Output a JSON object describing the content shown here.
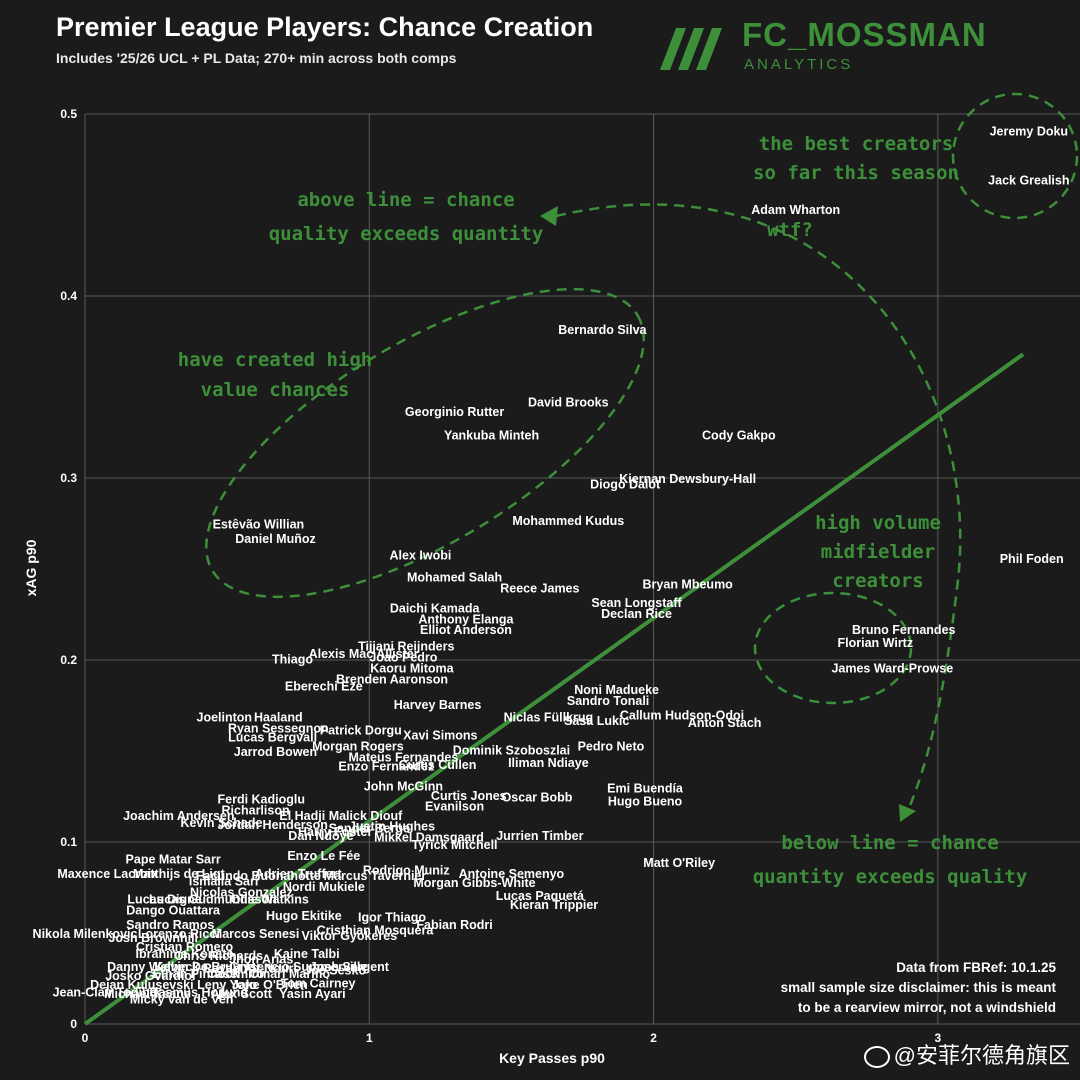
{
  "header": {
    "title": "Premier League Players: Chance Creation",
    "subtitle": "Includes '25/26 UCL + PL Data; 270+ min across both comps"
  },
  "logo": {
    "brand": "FC_MOSSMAN",
    "sub": "ANALYTICS"
  },
  "source": {
    "line1": "Data from FBRef: 10.1.25",
    "line2": "small sample size disclaimer: this is meant",
    "line3": "to be a rearview mirror, not a windshield"
  },
  "watermark": {
    "text": "@安菲尔德角旗区"
  },
  "colors": {
    "background": "#1b1b1b",
    "accent": "#3d8f3a",
    "grid": "#5a5a5a",
    "text": "#ffffff"
  },
  "annotations": [
    {
      "lines": [
        "the best creators",
        "so far this season"
      ]
    },
    {
      "lines": [
        "above line = chance",
        "quality exceeds quantity"
      ]
    },
    {
      "lines": [
        "have created high",
        "value chances"
      ]
    },
    {
      "lines": [
        "wtf?"
      ]
    },
    {
      "lines": [
        "high volume",
        "midfielder",
        "creators"
      ]
    },
    {
      "lines": [
        "below line = chance",
        "quantity exceeds quality"
      ]
    }
  ],
  "chart_data": {
    "type": "scatter",
    "xlabel": "Key Passes p90",
    "ylabel": "xAG p90",
    "xlim": [
      0,
      3.5
    ],
    "ylim": [
      0,
      0.5
    ],
    "xticks": [
      0,
      1,
      2,
      3
    ],
    "yticks": [
      0,
      0.1,
      0.2,
      0.3,
      0.4,
      0.5
    ],
    "grid": true,
    "trendline": {
      "x": [
        0,
        3.3
      ],
      "y": [
        0,
        0.368
      ]
    },
    "points": [
      {
        "name": "Jeremy Doku",
        "x": 3.32,
        "y": 0.49
      },
      {
        "name": "Jack Grealish",
        "x": 3.32,
        "y": 0.463
      },
      {
        "name": "Adam Wharton",
        "x": 2.5,
        "y": 0.447
      },
      {
        "name": "Phil Foden",
        "x": 3.33,
        "y": 0.255
      },
      {
        "name": "Bernardo Silva",
        "x": 1.82,
        "y": 0.381
      },
      {
        "name": "David Brooks",
        "x": 1.7,
        "y": 0.341
      },
      {
        "name": "Georginio Rutter",
        "x": 1.3,
        "y": 0.336
      },
      {
        "name": "Yankuba Minteh",
        "x": 1.43,
        "y": 0.323
      },
      {
        "name": "Cody Gakpo",
        "x": 2.3,
        "y": 0.323
      },
      {
        "name": "Kiernan Dewsbury-Hall",
        "x": 2.12,
        "y": 0.299
      },
      {
        "name": "Diogo Dalot",
        "x": 1.9,
        "y": 0.296
      },
      {
        "name": "Mohammed Kudus",
        "x": 1.7,
        "y": 0.276
      },
      {
        "name": "Estêvão Willian",
        "x": 0.61,
        "y": 0.274
      },
      {
        "name": "Daniel Muñoz",
        "x": 0.67,
        "y": 0.266
      },
      {
        "name": "Alex Iwobi",
        "x": 1.18,
        "y": 0.257
      },
      {
        "name": "Mohamed Salah",
        "x": 1.3,
        "y": 0.245
      },
      {
        "name": "Reece James",
        "x": 1.6,
        "y": 0.239
      },
      {
        "name": "Bryan Mbeumo",
        "x": 2.12,
        "y": 0.241
      },
      {
        "name": "Sean Longstaff",
        "x": 1.94,
        "y": 0.231
      },
      {
        "name": "Declan Rice",
        "x": 1.94,
        "y": 0.225
      },
      {
        "name": "Daichi Kamada",
        "x": 1.23,
        "y": 0.228
      },
      {
        "name": "Anthony Elanga",
        "x": 1.34,
        "y": 0.222
      },
      {
        "name": "Elliot Anderson",
        "x": 1.34,
        "y": 0.216
      },
      {
        "name": "Bruno Fernandes",
        "x": 2.88,
        "y": 0.216
      },
      {
        "name": "Florian Wirtz",
        "x": 2.78,
        "y": 0.209
      },
      {
        "name": "James Ward-Prowse",
        "x": 2.84,
        "y": 0.195
      },
      {
        "name": "Tijjani Reijnders",
        "x": 1.13,
        "y": 0.207
      },
      {
        "name": "Alexis Mac Allister",
        "x": 0.98,
        "y": 0.203
      },
      {
        "name": "Joao Pedro",
        "x": 1.12,
        "y": 0.201
      },
      {
        "name": "Thiago",
        "x": 0.73,
        "y": 0.2
      },
      {
        "name": "Kaoru Mitoma",
        "x": 1.15,
        "y": 0.195
      },
      {
        "name": "Brenden Aaronson",
        "x": 1.08,
        "y": 0.189
      },
      {
        "name": "Eberechi Eze",
        "x": 0.84,
        "y": 0.185
      },
      {
        "name": "Noni Madueke",
        "x": 1.87,
        "y": 0.183
      },
      {
        "name": "Sandro Tonali",
        "x": 1.84,
        "y": 0.177
      },
      {
        "name": "Harvey Barnes",
        "x": 1.24,
        "y": 0.175
      },
      {
        "name": "Niclas Füllkrug",
        "x": 1.63,
        "y": 0.168
      },
      {
        "name": "Sasa Lukic",
        "x": 1.8,
        "y": 0.166
      },
      {
        "name": "Callum Hudson-Odoi",
        "x": 2.1,
        "y": 0.169
      },
      {
        "name": "Anton Stach",
        "x": 2.25,
        "y": 0.165
      },
      {
        "name": "Joelinton",
        "x": 0.49,
        "y": 0.168
      },
      {
        "name": "Haaland",
        "x": 0.68,
        "y": 0.168
      },
      {
        "name": "Ryan Sessegnon",
        "x": 0.68,
        "y": 0.162
      },
      {
        "name": "Patrick Dorgu",
        "x": 0.97,
        "y": 0.161
      },
      {
        "name": "Lucas Bergvall",
        "x": 0.66,
        "y": 0.157
      },
      {
        "name": "Xavi Simons",
        "x": 1.25,
        "y": 0.158
      },
      {
        "name": "Jarrod Bowen",
        "x": 0.67,
        "y": 0.149
      },
      {
        "name": "Morgan Rogers",
        "x": 0.96,
        "y": 0.152
      },
      {
        "name": "Pedro Neto",
        "x": 1.85,
        "y": 0.152
      },
      {
        "name": "Dominik Szoboszlai",
        "x": 1.5,
        "y": 0.15
      },
      {
        "name": "Mateus Fernandes",
        "x": 1.12,
        "y": 0.146
      },
      {
        "name": "Iliman Ndiaye",
        "x": 1.63,
        "y": 0.143
      },
      {
        "name": "Curtis Cullen",
        "x": 1.24,
        "y": 0.142
      },
      {
        "name": "Enzo Fernandez",
        "x": 1.06,
        "y": 0.141
      },
      {
        "name": "Emi Buendía",
        "x": 1.97,
        "y": 0.129
      },
      {
        "name": "Hugo Bueno",
        "x": 1.97,
        "y": 0.122
      },
      {
        "name": "John McGinn",
        "x": 1.12,
        "y": 0.13
      },
      {
        "name": "Curtis Jones",
        "x": 1.35,
        "y": 0.125
      },
      {
        "name": "Oscar Bobb",
        "x": 1.59,
        "y": 0.124
      },
      {
        "name": "Ferdi Kadioglu",
        "x": 0.62,
        "y": 0.123
      },
      {
        "name": "Richarlison",
        "x": 0.6,
        "y": 0.117
      },
      {
        "name": "Joachim Andersen",
        "x": 0.33,
        "y": 0.114
      },
      {
        "name": "El Hadji Malick Diouf",
        "x": 0.9,
        "y": 0.114
      },
      {
        "name": "Evanilson",
        "x": 1.3,
        "y": 0.119
      },
      {
        "name": "Kevin Schade",
        "x": 0.48,
        "y": 0.11
      },
      {
        "name": "Jordan Henderson",
        "x": 0.66,
        "y": 0.109
      },
      {
        "name": "Sander Berge",
        "x": 1.0,
        "y": 0.107
      },
      {
        "name": "Dan Ndoye",
        "x": 0.83,
        "y": 0.103
      },
      {
        "name": "Harry Foster",
        "x": 0.88,
        "y": 0.105
      },
      {
        "name": "Justin Hughes",
        "x": 1.08,
        "y": 0.108
      },
      {
        "name": "Mikkel Damsgaard",
        "x": 1.21,
        "y": 0.102
      },
      {
        "name": "Jurrien Timber",
        "x": 1.6,
        "y": 0.103
      },
      {
        "name": "Tyrick Mitchell",
        "x": 1.3,
        "y": 0.098
      },
      {
        "name": "Pape Matar Sarr",
        "x": 0.31,
        "y": 0.09
      },
      {
        "name": "Enzo Le Fée",
        "x": 0.84,
        "y": 0.092
      },
      {
        "name": "Matt O'Riley",
        "x": 2.09,
        "y": 0.088
      },
      {
        "name": "Maxence Lacroix",
        "x": 0.08,
        "y": 0.082
      },
      {
        "name": "Matthijs de Ligt",
        "x": 0.33,
        "y": 0.082
      },
      {
        "name": "Facundo Buonanotte",
        "x": 0.61,
        "y": 0.081
      },
      {
        "name": "Adrien Truffert",
        "x": 0.75,
        "y": 0.082
      },
      {
        "name": "Marcus Tavernier",
        "x": 1.02,
        "y": 0.081
      },
      {
        "name": "Rodrigo Muniz",
        "x": 1.13,
        "y": 0.084
      },
      {
        "name": "Antoine Semenyo",
        "x": 1.5,
        "y": 0.082
      },
      {
        "name": "Ismaila Sarr",
        "x": 0.49,
        "y": 0.078
      },
      {
        "name": "Nordi Mukiele",
        "x": 0.84,
        "y": 0.075
      },
      {
        "name": "Morgan Gibbs-White",
        "x": 1.37,
        "y": 0.077
      },
      {
        "name": "Nicolas Gonzalez",
        "x": 0.55,
        "y": 0.072
      },
      {
        "name": "Lucas Paquetá",
        "x": 1.6,
        "y": 0.07
      },
      {
        "name": "Lucas Digne",
        "x": 0.28,
        "y": 0.068
      },
      {
        "name": "Lucas Gudmundsson",
        "x": 0.45,
        "y": 0.068
      },
      {
        "name": "Ollie Watkins",
        "x": 0.65,
        "y": 0.068
      },
      {
        "name": "Kieran Trippier",
        "x": 1.65,
        "y": 0.065
      },
      {
        "name": "Dango Ouattara",
        "x": 0.31,
        "y": 0.062
      },
      {
        "name": "Hugo Ekitike",
        "x": 0.77,
        "y": 0.059
      },
      {
        "name": "Igor Thiago",
        "x": 1.08,
        "y": 0.058
      },
      {
        "name": "Fabian Rodri",
        "x": 1.3,
        "y": 0.054
      },
      {
        "name": "Sandro Ramos",
        "x": 0.3,
        "y": 0.054
      },
      {
        "name": "Nikola Milenkovic",
        "x": 0.0,
        "y": 0.049
      },
      {
        "name": "Josh Brownhill",
        "x": 0.24,
        "y": 0.047
      },
      {
        "name": "Lorenzo Ricci",
        "x": 0.33,
        "y": 0.049
      },
      {
        "name": "Marcos Senesi",
        "x": 0.6,
        "y": 0.049
      },
      {
        "name": "Viktor Gyokeres",
        "x": 0.93,
        "y": 0.048
      },
      {
        "name": "Cristhian Mosquera",
        "x": 1.02,
        "y": 0.051
      },
      {
        "name": "Cristian Romero",
        "x": 0.35,
        "y": 0.042
      },
      {
        "name": "Ibrahima Konate",
        "x": 0.35,
        "y": 0.038
      },
      {
        "name": "Chris Richards",
        "x": 0.47,
        "y": 0.037
      },
      {
        "name": "Jhon Arias",
        "x": 0.62,
        "y": 0.035
      },
      {
        "name": "Kaine Talbi",
        "x": 0.78,
        "y": 0.038
      },
      {
        "name": "Danny Welbeck",
        "x": 0.24,
        "y": 0.031
      },
      {
        "name": "Kevin De Bruyne",
        "x": 0.42,
        "y": 0.031
      },
      {
        "name": "Rayan Ait-Nouri",
        "x": 0.58,
        "y": 0.03
      },
      {
        "name": "Crysencio Summerville",
        "x": 0.75,
        "y": 0.031
      },
      {
        "name": "Josh Sargent",
        "x": 0.93,
        "y": 0.031
      },
      {
        "name": "Josko Gvardiol",
        "x": 0.23,
        "y": 0.026
      },
      {
        "name": "Ethan Pinnock",
        "x": 0.39,
        "y": 0.027
      },
      {
        "name": "Casemiro",
        "x": 0.53,
        "y": 0.027
      },
      {
        "name": "Omari Marmo",
        "x": 0.72,
        "y": 0.027
      },
      {
        "name": "Joe Sesko",
        "x": 0.88,
        "y": 0.029
      },
      {
        "name": "Dejan Kulusevski",
        "x": 0.2,
        "y": 0.021
      },
      {
        "name": "Leny Yoro",
        "x": 0.5,
        "y": 0.021
      },
      {
        "name": "Jake O'Brien",
        "x": 0.65,
        "y": 0.021
      },
      {
        "name": "Tom Cairney",
        "x": 0.82,
        "y": 0.022
      },
      {
        "name": "Jean-Clair Todibo",
        "x": 0.07,
        "y": 0.017
      },
      {
        "name": "Michael Keane",
        "x": 0.22,
        "y": 0.016
      },
      {
        "name": "Rasmus Hojlund",
        "x": 0.4,
        "y": 0.017
      },
      {
        "name": "Alex Scott",
        "x": 0.55,
        "y": 0.016
      },
      {
        "name": "Yasin Ayari",
        "x": 0.8,
        "y": 0.016
      },
      {
        "name": "Micky van de Ven",
        "x": 0.34,
        "y": 0.013
      }
    ]
  }
}
